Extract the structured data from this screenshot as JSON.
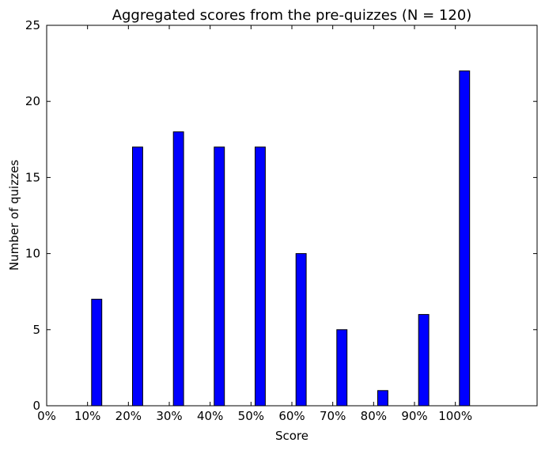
{
  "chart_data": {
    "type": "bar",
    "title": "Aggregated scores from the pre-quizzes (N = 120)",
    "xlabel": "Score",
    "ylabel": "Number of quizzes",
    "categories": [
      "0%",
      "10%",
      "20%",
      "30%",
      "40%",
      "50%",
      "60%",
      "70%",
      "80%",
      "90%",
      "100%"
    ],
    "values": [
      0,
      7,
      17,
      18,
      17,
      17,
      10,
      5,
      1,
      6,
      22
    ],
    "ylim": [
      0,
      25
    ],
    "yticks": [
      0,
      5,
      10,
      15,
      20,
      25
    ],
    "grid": false,
    "bar_color": "#0000ff",
    "edge_color": "#000000"
  }
}
